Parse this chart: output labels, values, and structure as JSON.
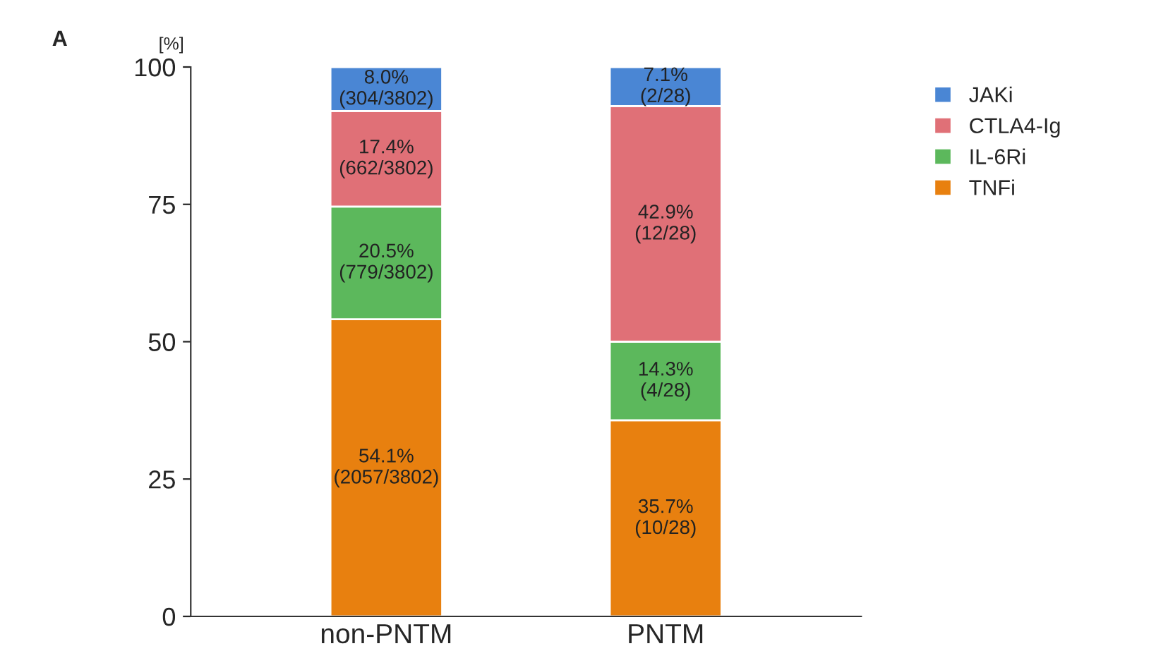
{
  "chart_data": {
    "type": "bar",
    "stacked": true,
    "ylabel": "[%]",
    "annotations": [
      "A"
    ],
    "categories": [
      "non-PNTM",
      "PNTM"
    ],
    "series": [
      {
        "name": "TNFi",
        "color": "#e8800f",
        "values": [
          54.1,
          35.7
        ],
        "value_labels": [
          "54.1%\n(2057/3802)",
          "35.7%\n(10/28)"
        ]
      },
      {
        "name": "IL-6Ri",
        "color": "#5cb85c",
        "values": [
          20.5,
          14.3
        ],
        "value_labels": [
          "20.5%\n(779/3802)",
          "14.3%\n(4/28)"
        ]
      },
      {
        "name": "CTLA4-Ig",
        "color": "#e07077",
        "values": [
          17.4,
          42.9
        ],
        "value_labels": [
          "17.4%\n(662/3802)",
          "42.9%\n(12/28)"
        ]
      },
      {
        "name": "JAKi",
        "color": "#4a86d4",
        "values": [
          8.0,
          7.1
        ],
        "value_labels": [
          "8.0%\n(304/3802)",
          "7.1%\n(2/28)"
        ]
      }
    ],
    "ylim": [
      0,
      100
    ],
    "yticks": [
      0,
      25,
      50,
      75,
      100
    ],
    "grid": false,
    "legend": "right"
  }
}
